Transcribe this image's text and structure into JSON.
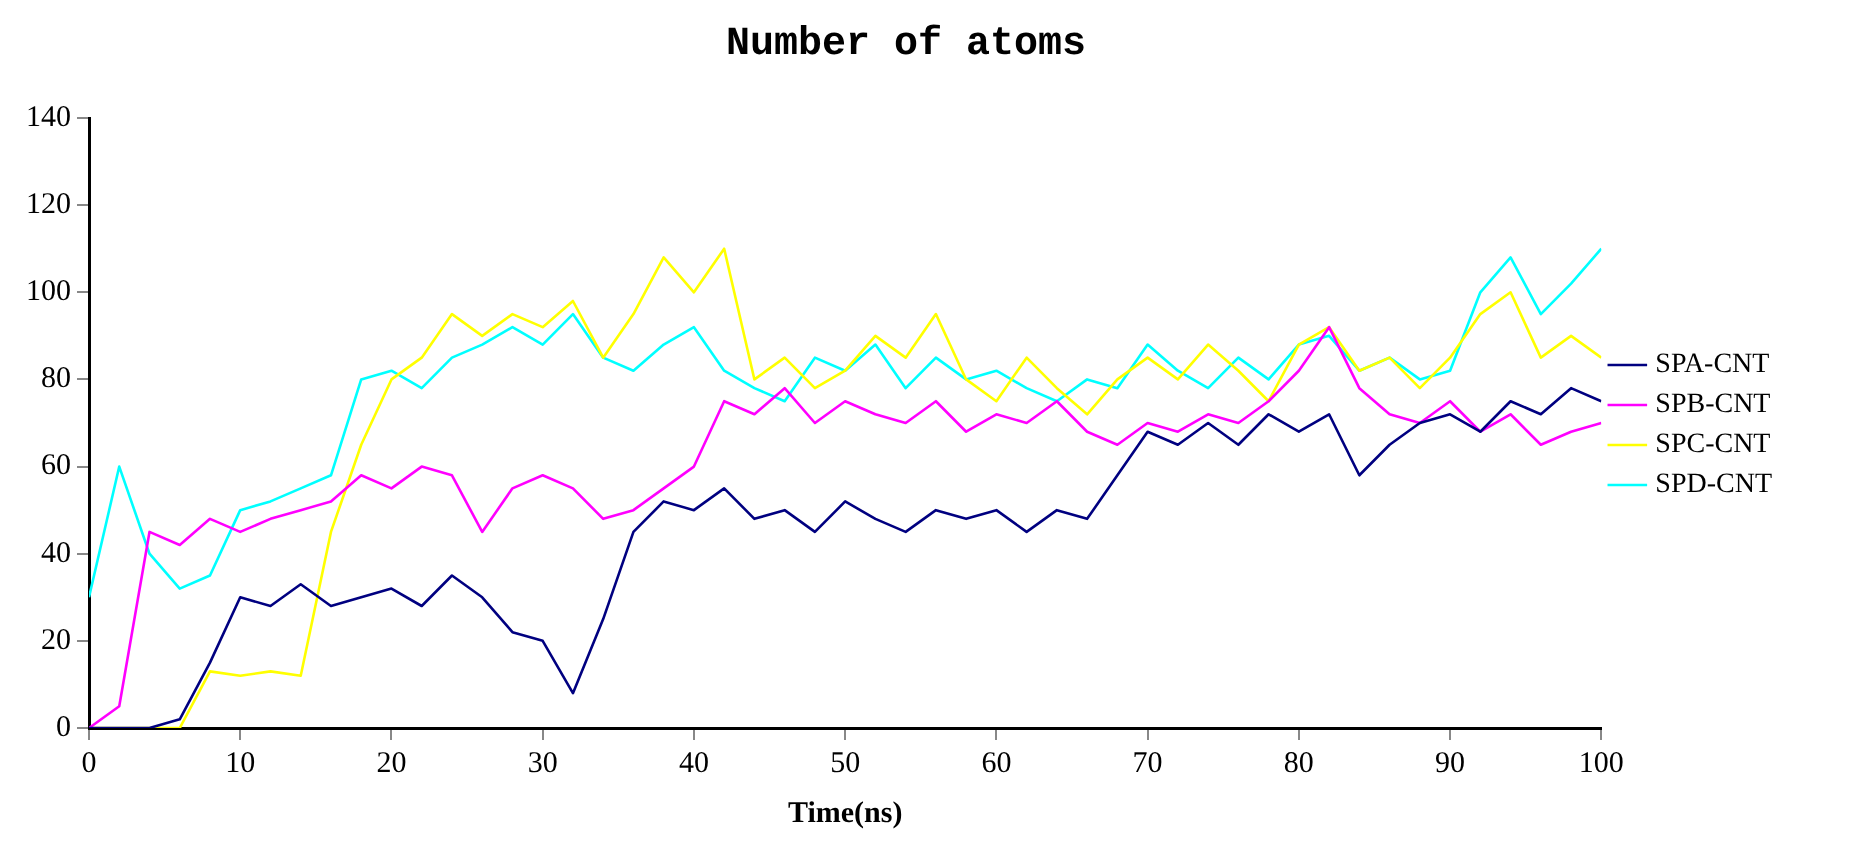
{
  "chart_data": {
    "type": "line",
    "title": "Number of atoms",
    "xlabel": "Time(ns)",
    "x": [
      0,
      2,
      4,
      6,
      8,
      10,
      12,
      14,
      16,
      18,
      20,
      22,
      24,
      26,
      28,
      30,
      32,
      34,
      36,
      38,
      40,
      42,
      44,
      46,
      48,
      50,
      52,
      54,
      56,
      58,
      60,
      62,
      64,
      66,
      68,
      70,
      72,
      74,
      76,
      78,
      80,
      82,
      84,
      86,
      88,
      90,
      92,
      94,
      96,
      98,
      100
    ],
    "series": [
      {
        "name": "SPA-CNT",
        "color": "#000080",
        "values": [
          0,
          0,
          0,
          2,
          15,
          30,
          28,
          33,
          28,
          30,
          32,
          28,
          35,
          30,
          22,
          20,
          8,
          25,
          45,
          52,
          50,
          55,
          48,
          50,
          45,
          52,
          48,
          45,
          50,
          48,
          50,
          45,
          50,
          48,
          58,
          68,
          65,
          70,
          65,
          72,
          68,
          72,
          58,
          65,
          70,
          72,
          68,
          75,
          72,
          78,
          75
        ]
      },
      {
        "name": "SPB-CNT",
        "color": "#ff00ff",
        "values": [
          0,
          5,
          45,
          42,
          48,
          45,
          48,
          50,
          52,
          58,
          55,
          60,
          58,
          45,
          55,
          58,
          55,
          48,
          50,
          55,
          60,
          75,
          72,
          78,
          70,
          75,
          72,
          70,
          75,
          68,
          72,
          70,
          75,
          68,
          65,
          70,
          68,
          72,
          70,
          75,
          82,
          92,
          78,
          72,
          70,
          75,
          68,
          72,
          65,
          68,
          70
        ]
      },
      {
        "name": "SPC-CNT",
        "color": "#ffff00",
        "values": [
          0,
          0,
          0,
          0,
          13,
          12,
          13,
          12,
          45,
          65,
          80,
          85,
          95,
          90,
          95,
          92,
          98,
          85,
          95,
          108,
          100,
          110,
          80,
          85,
          78,
          82,
          90,
          85,
          95,
          80,
          75,
          85,
          78,
          72,
          80,
          85,
          80,
          88,
          82,
          75,
          88,
          92,
          82,
          85,
          78,
          85,
          95,
          100,
          85,
          90,
          85
        ]
      },
      {
        "name": "SPD-CNT",
        "color": "#00ffff",
        "values": [
          30,
          60,
          40,
          32,
          35,
          50,
          52,
          55,
          58,
          80,
          82,
          78,
          85,
          88,
          92,
          88,
          95,
          85,
          82,
          88,
          92,
          82,
          78,
          75,
          85,
          82,
          88,
          78,
          85,
          80,
          82,
          78,
          75,
          80,
          78,
          88,
          82,
          78,
          85,
          80,
          88,
          90,
          82,
          85,
          80,
          82,
          100,
          108,
          95,
          102,
          110
        ]
      }
    ],
    "xlim": [
      0,
      100
    ],
    "xticks": [
      0,
      10,
      20,
      30,
      40,
      50,
      60,
      70,
      80,
      90,
      100
    ],
    "ylim": [
      0,
      140
    ],
    "yticks": [
      0,
      20,
      40,
      60,
      80,
      100,
      120,
      140
    ],
    "grid": false,
    "legend": "right",
    "marker": "none",
    "line_style": "solid"
  }
}
